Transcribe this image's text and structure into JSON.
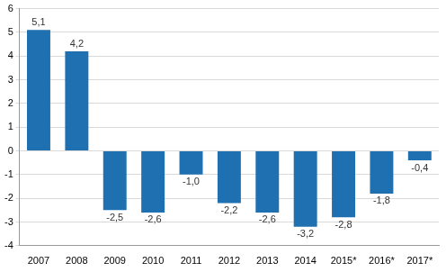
{
  "chart_data": {
    "type": "bar",
    "categories": [
      "2007",
      "2008",
      "2009",
      "2010",
      "2011",
      "2012",
      "2013",
      "2014",
      "2015*",
      "2016*",
      "2017*"
    ],
    "values": [
      5.1,
      4.2,
      -2.5,
      -2.6,
      -1.0,
      -2.2,
      -2.6,
      -3.2,
      -2.8,
      -1.8,
      -0.4
    ],
    "value_labels": [
      "5,1",
      "4,2",
      "-2,5",
      "-2,6",
      "-1,0",
      "-2,2",
      "-2,6",
      "-3,2",
      "-2,8",
      "-1,8",
      "-0,4"
    ],
    "color": "#1f70b0",
    "ylim": [
      -4,
      6
    ],
    "yticks": [
      -4,
      -3,
      -2,
      -1,
      0,
      1,
      2,
      3,
      4,
      5,
      6
    ],
    "grid": true,
    "data_labels": true
  }
}
